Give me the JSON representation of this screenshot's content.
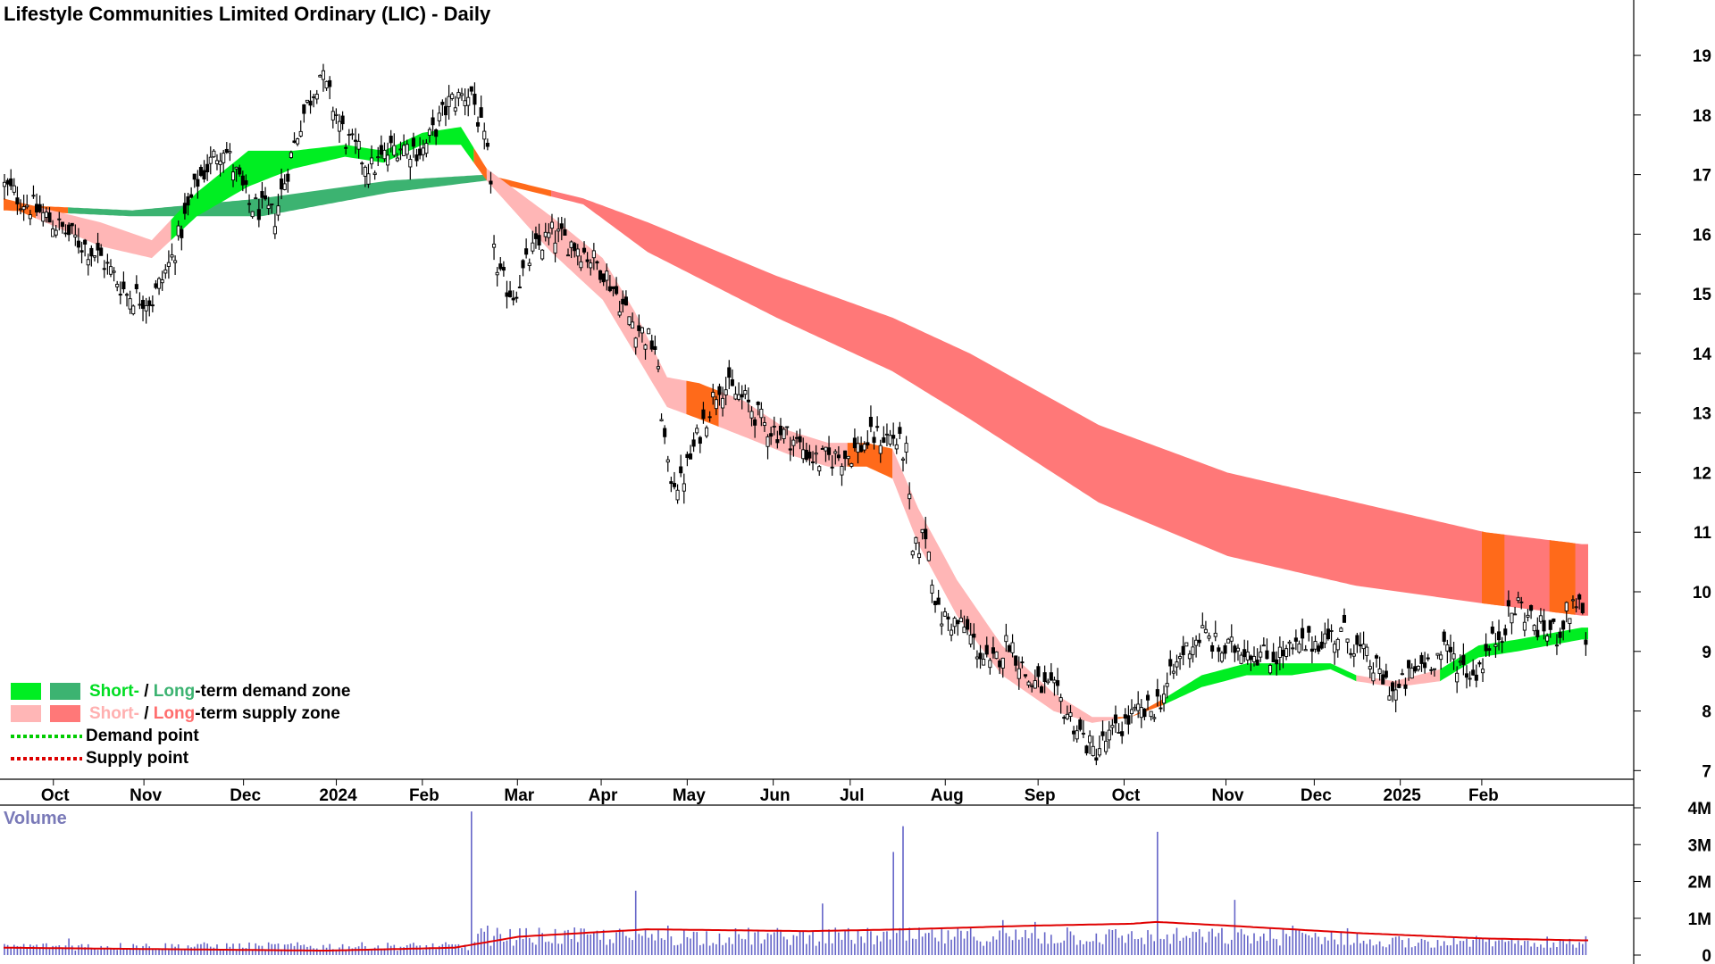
{
  "title": "Lifestyle Communities Limited Ordinary (LIC) - Daily",
  "legend": {
    "demand_prefix": "Short-",
    "demand_sep": " / ",
    "demand_long": "Long",
    "demand_suffix": "-term demand zone",
    "supply_prefix": "Short-",
    "supply_sep": " / ",
    "supply_long": "Long",
    "supply_suffix": "-term supply zone",
    "demand_point": "Demand point",
    "supply_point": "Supply point"
  },
  "colors": {
    "short_demand": "#00ee22",
    "long_demand": "#3cb371",
    "short_supply": "#ffb6b6",
    "long_supply": "#ff7878",
    "transition": "#ff6a1a",
    "demand_point": "#00cc00",
    "supply_point": "#dd0000",
    "volume_bar": "#6464c8",
    "volume_ma": "#e00000",
    "volume_title": "#7a7ab8"
  },
  "volume_title": "Volume",
  "chart_data": [
    {
      "type": "candlestick",
      "title": "Lifestyle Communities Limited Ordinary (LIC) - Daily",
      "x_ticks": [
        "Oct",
        "Nov",
        "Dec",
        "2024",
        "Feb",
        "Mar",
        "Apr",
        "May",
        "Jun",
        "Jul",
        "Aug",
        "Sep",
        "Oct",
        "Nov",
        "Dec",
        "2025",
        "Feb"
      ],
      "y_ticks": [
        7,
        8,
        9,
        10,
        11,
        12,
        13,
        14,
        15,
        16,
        17,
        18,
        19
      ],
      "ylim": [
        6.9,
        19.6
      ],
      "price_path": [
        [
          0,
          16.8
        ],
        [
          10,
          16.4
        ],
        [
          20,
          16.0
        ],
        [
          30,
          15.6
        ],
        [
          38,
          15.0
        ],
        [
          46,
          14.9
        ],
        [
          52,
          15.6
        ],
        [
          60,
          16.9
        ],
        [
          68,
          17.5
        ],
        [
          76,
          16.5
        ],
        [
          84,
          16.3
        ],
        [
          92,
          17.9
        ],
        [
          98,
          18.7
        ],
        [
          106,
          17.6
        ],
        [
          114,
          17.1
        ],
        [
          122,
          17.5
        ],
        [
          130,
          17.4
        ],
        [
          138,
          18.2
        ],
        [
          145,
          18.4
        ],
        [
          150,
          17.3
        ],
        [
          153,
          15.3
        ],
        [
          158,
          15.0
        ],
        [
          164,
          15.7
        ],
        [
          170,
          16.0
        ],
        [
          178,
          15.8
        ],
        [
          186,
          15.4
        ],
        [
          194,
          14.6
        ],
        [
          202,
          14.1
        ],
        [
          206,
          12.0
        ],
        [
          210,
          11.8
        ],
        [
          216,
          12.7
        ],
        [
          222,
          13.5
        ],
        [
          230,
          13.2
        ],
        [
          236,
          12.8
        ],
        [
          244,
          12.6
        ],
        [
          252,
          12.2
        ],
        [
          262,
          12.3
        ],
        [
          270,
          12.6
        ],
        [
          276,
          12.6
        ],
        [
          280,
          12.3
        ],
        [
          282,
          10.6
        ],
        [
          286,
          11.0
        ],
        [
          290,
          9.6
        ],
        [
          298,
          9.4
        ],
        [
          306,
          8.7
        ],
        [
          312,
          9.2
        ],
        [
          318,
          8.5
        ],
        [
          326,
          8.3
        ],
        [
          332,
          7.8
        ],
        [
          338,
          7.3
        ],
        [
          344,
          7.6
        ],
        [
          350,
          7.9
        ],
        [
          356,
          8.0
        ],
        [
          360,
          8.3
        ],
        [
          366,
          9.0
        ],
        [
          372,
          9.3
        ],
        [
          378,
          9.0
        ],
        [
          384,
          9.1
        ],
        [
          392,
          8.9
        ],
        [
          400,
          9.0
        ],
        [
          408,
          9.2
        ],
        [
          416,
          9.3
        ],
        [
          424,
          8.8
        ],
        [
          432,
          8.3
        ],
        [
          440,
          8.8
        ],
        [
          448,
          9.0
        ],
        [
          456,
          8.6
        ],
        [
          464,
          9.3
        ],
        [
          470,
          9.8
        ],
        [
          476,
          9.4
        ],
        [
          482,
          9.3
        ],
        [
          488,
          9.9
        ],
        [
          490,
          9.5
        ],
        [
          492,
          8.8
        ]
      ],
      "short_term_zone": {
        "upper": [
          [
            0,
            16.6
          ],
          [
            30,
            16.2
          ],
          [
            46,
            15.9
          ],
          [
            60,
            16.7
          ],
          [
            76,
            17.4
          ],
          [
            90,
            17.4
          ],
          [
            106,
            17.5
          ],
          [
            118,
            17.4
          ],
          [
            130,
            17.7
          ],
          [
            142,
            17.8
          ],
          [
            150,
            17.1
          ],
          [
            160,
            16.7
          ],
          [
            170,
            16.3
          ],
          [
            186,
            15.6
          ],
          [
            196,
            14.7
          ],
          [
            206,
            13.6
          ],
          [
            216,
            13.5
          ],
          [
            230,
            13.2
          ],
          [
            244,
            12.7
          ],
          [
            256,
            12.5
          ],
          [
            268,
            12.5
          ],
          [
            276,
            12.4
          ],
          [
            284,
            11.4
          ],
          [
            296,
            10.2
          ],
          [
            310,
            9.1
          ],
          [
            326,
            8.3
          ],
          [
            338,
            7.9
          ],
          [
            350,
            7.9
          ],
          [
            360,
            8.2
          ],
          [
            372,
            8.6
          ],
          [
            386,
            8.8
          ],
          [
            400,
            8.8
          ],
          [
            412,
            8.8
          ],
          [
            420,
            8.6
          ],
          [
            432,
            8.5
          ],
          [
            446,
            8.7
          ],
          [
            458,
            9.1
          ],
          [
            470,
            9.2
          ],
          [
            480,
            9.3
          ],
          [
            490,
            9.4
          ]
        ],
        "lower": [
          [
            0,
            16.5
          ],
          [
            30,
            15.8
          ],
          [
            46,
            15.6
          ],
          [
            60,
            16.3
          ],
          [
            76,
            16.8
          ],
          [
            90,
            17.1
          ],
          [
            106,
            17.3
          ],
          [
            118,
            17.2
          ],
          [
            130,
            17.5
          ],
          [
            142,
            17.5
          ],
          [
            150,
            16.9
          ],
          [
            160,
            16.3
          ],
          [
            170,
            15.7
          ],
          [
            186,
            14.9
          ],
          [
            196,
            14.0
          ],
          [
            206,
            13.1
          ],
          [
            216,
            12.9
          ],
          [
            230,
            12.6
          ],
          [
            244,
            12.3
          ],
          [
            256,
            12.1
          ],
          [
            268,
            12.1
          ],
          [
            276,
            11.9
          ],
          [
            284,
            10.8
          ],
          [
            296,
            9.6
          ],
          [
            310,
            8.6
          ],
          [
            326,
            8.0
          ],
          [
            338,
            7.8
          ],
          [
            350,
            7.9
          ],
          [
            360,
            8.1
          ],
          [
            372,
            8.4
          ],
          [
            386,
            8.6
          ],
          [
            400,
            8.6
          ],
          [
            412,
            8.7
          ],
          [
            420,
            8.5
          ],
          [
            432,
            8.4
          ],
          [
            446,
            8.5
          ],
          [
            458,
            8.9
          ],
          [
            470,
            9.0
          ],
          [
            480,
            9.1
          ],
          [
            490,
            9.2
          ]
        ]
      },
      "long_term_zone": {
        "upper": [
          [
            0,
            16.5
          ],
          [
            40,
            16.4
          ],
          [
            80,
            16.6
          ],
          [
            120,
            16.9
          ],
          [
            150,
            17.0
          ],
          [
            180,
            16.6
          ],
          [
            200,
            16.2
          ],
          [
            240,
            15.3
          ],
          [
            276,
            14.6
          ],
          [
            300,
            14.0
          ],
          [
            340,
            12.8
          ],
          [
            380,
            12.0
          ],
          [
            420,
            11.5
          ],
          [
            460,
            11.0
          ],
          [
            490,
            10.8
          ]
        ],
        "lower": [
          [
            0,
            16.4
          ],
          [
            40,
            16.3
          ],
          [
            80,
            16.3
          ],
          [
            120,
            16.7
          ],
          [
            150,
            16.9
          ],
          [
            180,
            16.5
          ],
          [
            200,
            15.7
          ],
          [
            240,
            14.6
          ],
          [
            276,
            13.7
          ],
          [
            300,
            12.9
          ],
          [
            340,
            11.5
          ],
          [
            380,
            10.6
          ],
          [
            420,
            10.1
          ],
          [
            460,
            9.8
          ],
          [
            490,
            9.6
          ]
        ]
      }
    },
    {
      "type": "bar",
      "title": "Volume",
      "y_ticks": [
        "4M",
        "3M",
        "2M",
        "1M",
        "0"
      ],
      "ylim": [
        0,
        4000000
      ],
      "spikes": [
        [
          0,
          300000
        ],
        [
          20,
          450000
        ],
        [
          40,
          300000
        ],
        [
          60,
          300000
        ],
        [
          80,
          250000
        ],
        [
          100,
          200000
        ],
        [
          120,
          250000
        ],
        [
          145,
          3900000
        ],
        [
          150,
          800000
        ],
        [
          196,
          1750000
        ],
        [
          206,
          800000
        ],
        [
          254,
          1400000
        ],
        [
          276,
          2800000
        ],
        [
          279,
          3500000
        ],
        [
          300,
          750000
        ],
        [
          310,
          950000
        ],
        [
          320,
          900000
        ],
        [
          330,
          750000
        ],
        [
          350,
          650000
        ],
        [
          358,
          3350000
        ],
        [
          382,
          1500000
        ],
        [
          400,
          800000
        ],
        [
          420,
          600000
        ],
        [
          450,
          500000
        ],
        [
          470,
          400000
        ],
        [
          490,
          300000
        ]
      ],
      "moving_average": [
        [
          0,
          200000
        ],
        [
          100,
          120000
        ],
        [
          140,
          200000
        ],
        [
          160,
          500000
        ],
        [
          200,
          700000
        ],
        [
          250,
          650000
        ],
        [
          280,
          700000
        ],
        [
          320,
          800000
        ],
        [
          350,
          850000
        ],
        [
          358,
          900000
        ],
        [
          380,
          800000
        ],
        [
          420,
          600000
        ],
        [
          460,
          450000
        ],
        [
          490,
          400000
        ]
      ]
    }
  ]
}
